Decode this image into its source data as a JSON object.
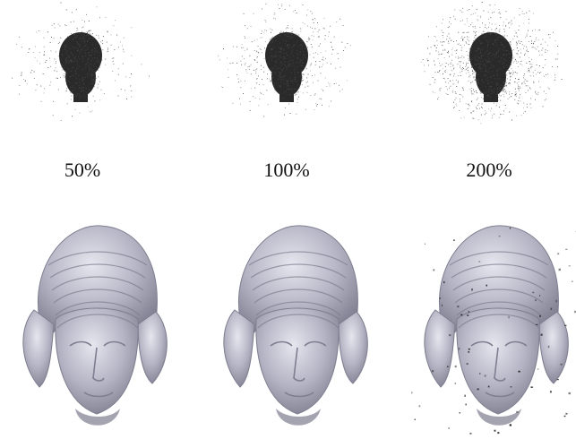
{
  "figure": {
    "columns": [
      {
        "label": "50%",
        "noise_density": 0.5,
        "outlier_level": 0.0
      },
      {
        "label": "100%",
        "noise_density": 1.0,
        "outlier_level": 0.0
      },
      {
        "label": "200%",
        "noise_density": 2.0,
        "outlier_level": 1.0
      }
    ],
    "colors": {
      "noise": "#1a1a1a",
      "head_dark": "#2a2a2a",
      "surface": "#b4b4c4",
      "surface_shadow": "#7e7e90",
      "surface_highlight": "#e6e6ef"
    }
  }
}
